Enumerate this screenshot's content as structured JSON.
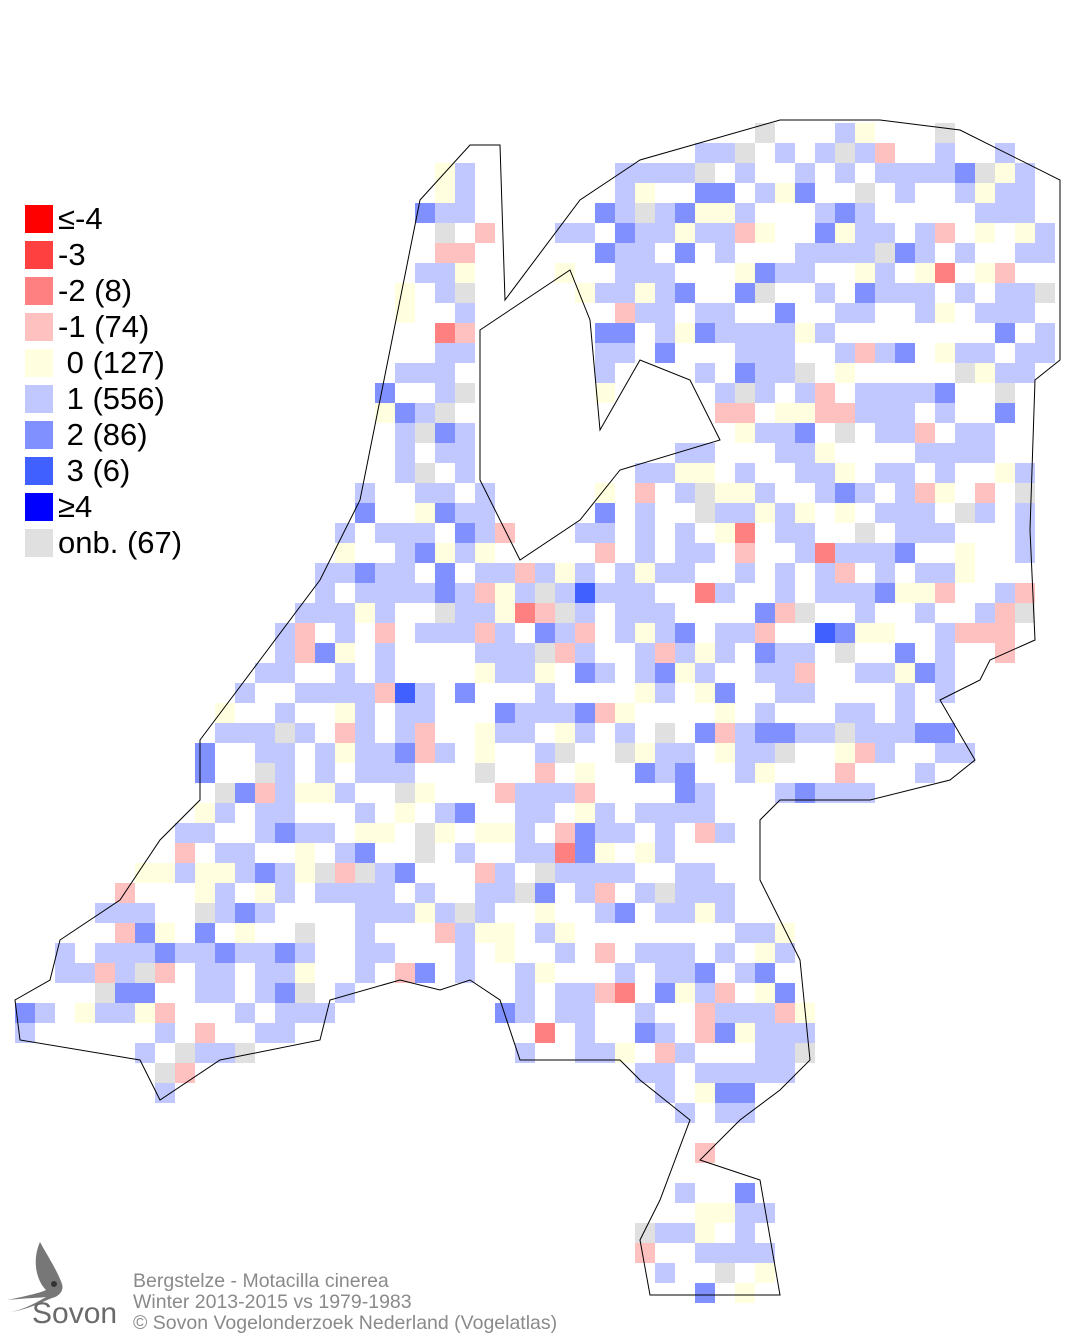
{
  "legend": [
    {
      "label": "≤-4",
      "color": "#ff0000"
    },
    {
      "label": "-3",
      "color": "#ff4040"
    },
    {
      "label": "-2 (8)",
      "color": "#ff8080"
    },
    {
      "label": "-1 (74)",
      "color": "#ffc0c0"
    },
    {
      "label": " 0 (127)",
      "color": "#ffffe0"
    },
    {
      "label": " 1 (556)",
      "color": "#c0c8ff"
    },
    {
      "label": " 2 (86)",
      "color": "#8090ff"
    },
    {
      "label": " 3 (6)",
      "color": "#4060ff"
    },
    {
      "label": "≥4",
      "color": "#0000ff"
    },
    {
      "label": "onb. (67)",
      "color": "#e0e0e0"
    }
  ],
  "footer": {
    "species": "Bergstelze - Motacilla cinerea",
    "period": "Winter 2013-2015 vs 1979-1983",
    "copyright": "© Sovon Vogelonderzoek Nederland (Vogelatlas)"
  },
  "logo": {
    "text": "Sovon"
  }
}
